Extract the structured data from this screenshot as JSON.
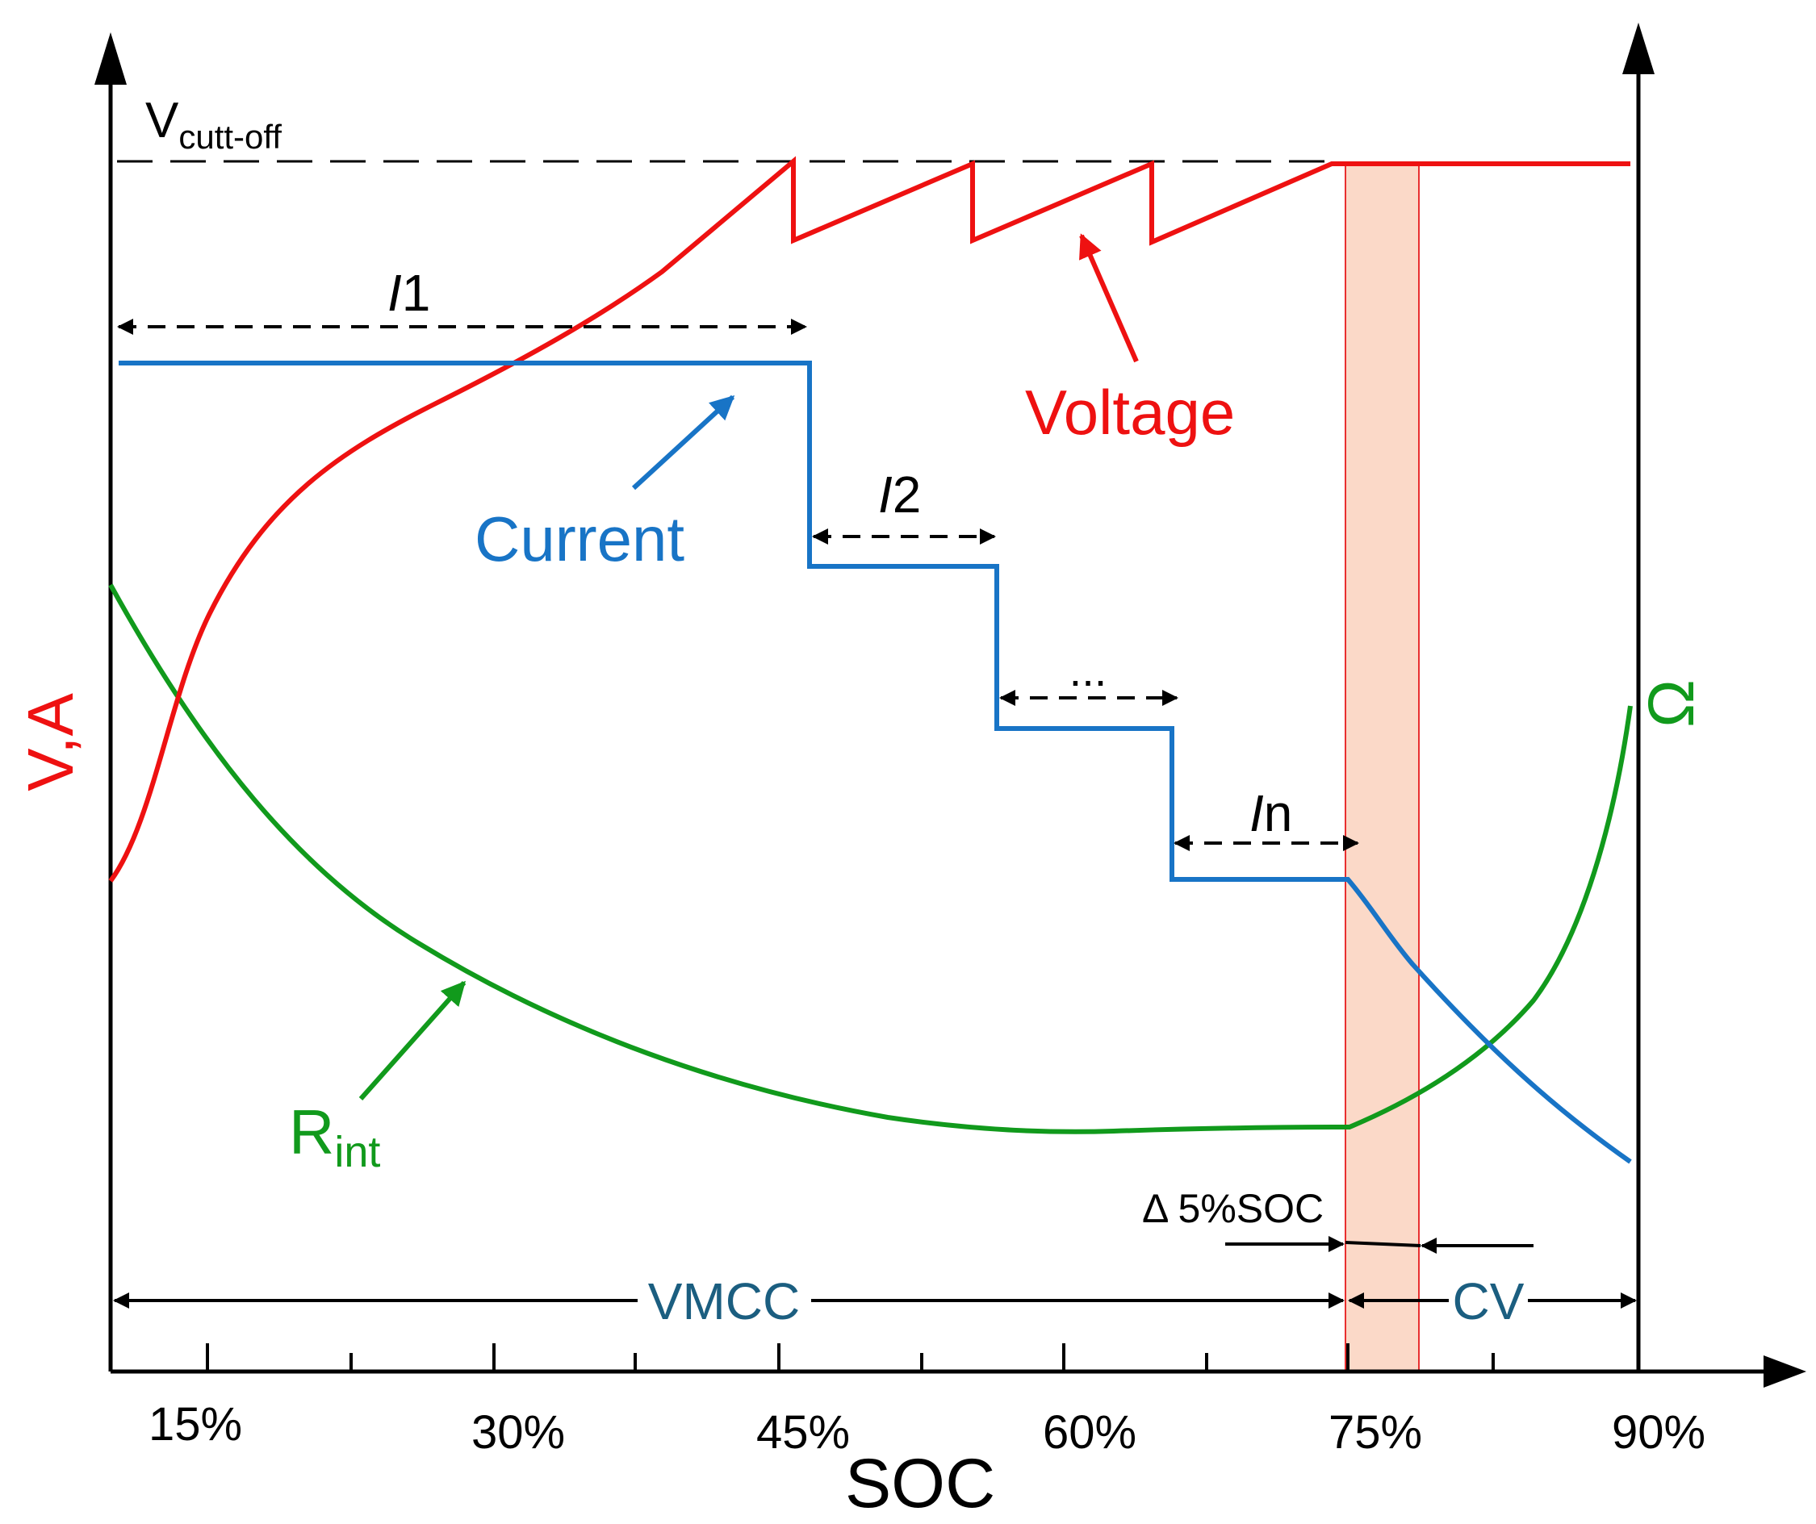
{
  "axes": {
    "x_title": "SOC",
    "y_left_title": "V,A",
    "y_right_title": "Ω",
    "x_ticks": [
      "15%",
      "30%",
      "45%",
      "60%",
      "75%",
      "90%"
    ]
  },
  "labels": {
    "vcutoff_main": "V",
    "vcutoff_sub": "cutt-off",
    "voltage": "Voltage",
    "current": "Current",
    "rint_main": "R",
    "rint_sub": "int",
    "i1_italic": "I",
    "i1_sub": "1",
    "i2_italic": "I",
    "i2_sub": "2",
    "ellipsis": "...",
    "in_italic": "I",
    "in_sub": "n",
    "delta": "Δ 5%SOC",
    "vmcc": "VMCC",
    "cv": "CV"
  },
  "colors": {
    "voltage": "#ee1111",
    "current": "#1874c6",
    "rint": "#119a1c",
    "band_fill": "#fbd9c8",
    "band_stroke": "#e83030",
    "phase_text": "#1b5e80",
    "axis": "#000000"
  }
}
